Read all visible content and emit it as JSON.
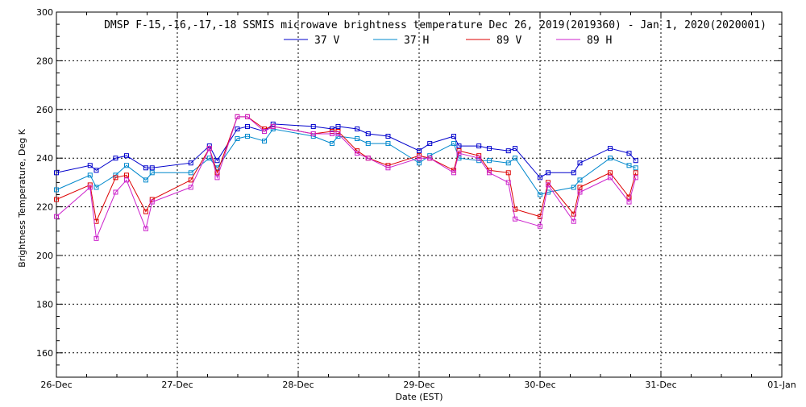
{
  "chart_data": {
    "type": "line",
    "title": "DMSP F-15,-16,-17,-18 SSMIS microwave brightness temperature Dec 26, 2019(2019360) - Jan  1, 2020(2020001)",
    "xlabel": "Date (EST)",
    "ylabel": "Brightness Temperature, Deg K",
    "ylim": [
      150,
      300
    ],
    "y_ticks": [
      160,
      180,
      200,
      220,
      240,
      260,
      280,
      300
    ],
    "xlim": [
      "2019-12-26T00:00",
      "2020-01-01T00:00"
    ],
    "x_ticks": [
      "2019-12-26T00:00",
      "2019-12-27T00:00",
      "2019-12-28T00:00",
      "2019-12-29T00:00",
      "2019-12-30T00:00",
      "2019-12-31T00:00",
      "2020-01-01T00:00"
    ],
    "x_tick_labels": [
      "26-Dec",
      "27-Dec",
      "28-Dec",
      "29-Dec",
      "30-Dec",
      "31-Dec",
      "01-Jan"
    ],
    "grid": true,
    "legend_position": "top-center",
    "x": [
      "2019-12-26T00:00",
      "2019-12-26T06:41",
      "2019-12-26T07:55",
      "2019-12-26T11:45",
      "2019-12-26T13:55",
      "2019-12-26T17:45",
      "2019-12-26T19:00",
      "2019-12-27T02:41",
      "2019-12-27T06:22",
      "2019-12-27T07:55",
      "2019-12-27T11:55",
      "2019-12-27T13:55",
      "2019-12-27T17:17",
      "2019-12-27T19:00",
      "2019-12-28T03:00",
      "2019-12-28T06:43",
      "2019-12-28T07:55",
      "2019-12-28T11:42",
      "2019-12-28T13:53",
      "2019-12-28T17:50",
      "2019-12-29T00:00",
      "2019-12-29T02:07",
      "2019-12-29T06:53",
      "2019-12-29T07:55",
      "2019-12-29T11:52",
      "2019-12-29T13:55",
      "2019-12-29T17:43",
      "2019-12-29T19:03",
      "2019-12-30T00:00",
      "2019-12-30T01:36",
      "2019-12-30T06:41",
      "2019-12-30T07:55",
      "2019-12-30T13:55",
      "2019-12-30T17:41",
      "2019-12-30T19:00"
    ],
    "series": [
      {
        "name": "37 V",
        "color": "#0000cc",
        "values": [
          234,
          237,
          235,
          240,
          241,
          236,
          236,
          238,
          245,
          239,
          252,
          253,
          251,
          254,
          253,
          252,
          253,
          252,
          250,
          249,
          243,
          246,
          249,
          245,
          245,
          244,
          243,
          244,
          232,
          234,
          234,
          238,
          244,
          242,
          239
        ]
      },
      {
        "name": "37 H",
        "color": "#0088cc",
        "values": [
          227,
          233,
          228,
          233,
          237,
          231,
          234,
          234,
          240,
          236,
          248,
          249,
          247,
          252,
          249,
          246,
          249,
          248,
          246,
          246,
          238,
          241,
          246,
          240,
          239,
          239,
          238,
          240,
          225,
          226,
          228,
          231,
          240,
          237,
          236
        ]
      },
      {
        "name": "89 V",
        "color": "#dd0000",
        "values": [
          223,
          229,
          214,
          232,
          233,
          218,
          223,
          231,
          244,
          234,
          257,
          257,
          252,
          253,
          250,
          251,
          251,
          243,
          240,
          237,
          241,
          240,
          235,
          243,
          241,
          235,
          234,
          219,
          216,
          230,
          217,
          228,
          234,
          224,
          234
        ]
      },
      {
        "name": "89 H",
        "color": "#cc22cc",
        "values": [
          216,
          228,
          207,
          226,
          231,
          211,
          222,
          228,
          244,
          232,
          257,
          257,
          251,
          253,
          250,
          250,
          250,
          242,
          240,
          236,
          240,
          240,
          234,
          242,
          240,
          234,
          230,
          215,
          212,
          229,
          214,
          226,
          232,
          222,
          232
        ]
      }
    ]
  }
}
